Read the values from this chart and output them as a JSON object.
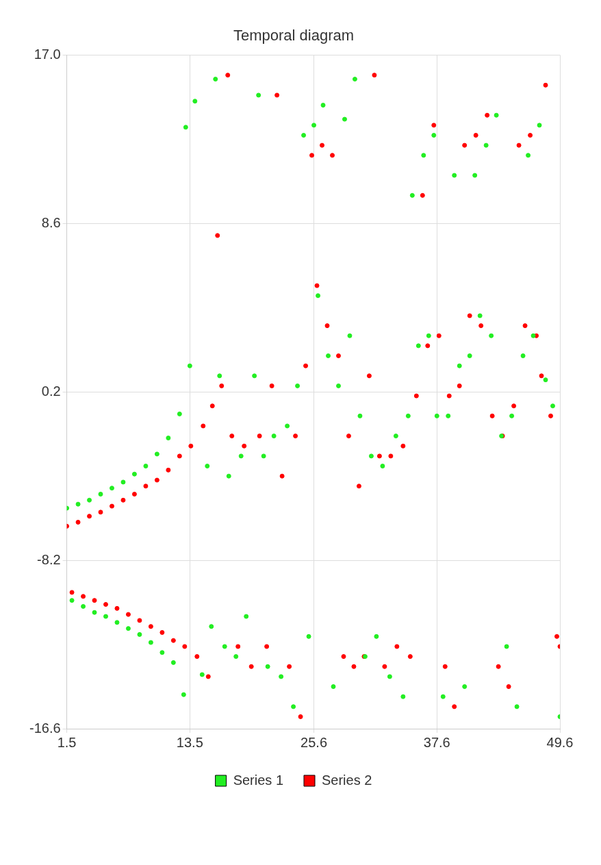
{
  "chart_data": {
    "type": "scatter",
    "title": "Temporal diagram",
    "xlim": [
      1.5,
      49.6
    ],
    "ylim": [
      -16.6,
      17.0
    ],
    "xticks": [
      1.5,
      13.5,
      25.6,
      37.6,
      49.6
    ],
    "yticks": [
      -16.6,
      -8.2,
      0.2,
      8.6,
      {
        "value": 17.0,
        "label": "17.0"
      }
    ],
    "grid": true,
    "legend": "bottom",
    "marker": "circle",
    "series": [
      {
        "name": "Series 1",
        "color": "#22ee22",
        "x": [
          1.5,
          2.0,
          2.6,
          3.1,
          3.7,
          4.2,
          4.8,
          5.3,
          5.9,
          6.4,
          7.0,
          7.5,
          8.1,
          8.6,
          9.2,
          9.7,
          10.3,
          10.8,
          11.4,
          11.9,
          12.5,
          12.9,
          13.1,
          13.5,
          14.0,
          14.7,
          15.2,
          15.6,
          16.0,
          16.4,
          16.9,
          17.3,
          18.0,
          18.5,
          19.0,
          19.8,
          20.2,
          20.7,
          21.1,
          21.7,
          22.4,
          23.0,
          23.6,
          24.0,
          24.6,
          25.1,
          25.6,
          26.0,
          26.5,
          27.0,
          27.5,
          28.0,
          28.6,
          29.1,
          29.6,
          30.1,
          30.6,
          31.2,
          31.7,
          32.3,
          33.0,
          33.6,
          34.3,
          34.8,
          35.2,
          35.8,
          36.3,
          36.8,
          37.3,
          37.6,
          38.2,
          38.7,
          39.3,
          39.8,
          40.3,
          40.8,
          41.3,
          41.8,
          42.4,
          42.9,
          43.4,
          43.9,
          44.4,
          44.9,
          45.4,
          46.0,
          46.5,
          47.0,
          47.6,
          48.2,
          48.9,
          49.6
        ],
        "values": [
          -5.6,
          -10.2,
          -5.4,
          -10.5,
          -5.2,
          -10.8,
          -4.9,
          -11.0,
          -4.6,
          -11.3,
          -4.3,
          -11.6,
          -3.9,
          -11.9,
          -3.5,
          -12.3,
          -2.9,
          -12.8,
          -2.1,
          -13.3,
          -0.9,
          -14.9,
          13.4,
          1.5,
          14.7,
          -13.9,
          -3.5,
          -11.5,
          15.8,
          1.0,
          -12.5,
          -4.0,
          -13.0,
          -3.0,
          -11.0,
          1.0,
          15.0,
          -3.0,
          -13.5,
          -2.0,
          -14.0,
          -1.5,
          -15.5,
          0.5,
          13.0,
          -12.0,
          13.5,
          5.0,
          14.5,
          2.0,
          -14.5,
          0.5,
          13.8,
          3.0,
          15.8,
          -1.0,
          -13.0,
          -3.0,
          -12.0,
          -3.5,
          -14.0,
          -2.0,
          -15.0,
          -1.0,
          10.0,
          2.5,
          12.0,
          3.0,
          13.0,
          -1.0,
          -15.0,
          -1.0,
          11.0,
          1.5,
          -14.5,
          2.0,
          11.0,
          4.0,
          12.5,
          3.0,
          14.0,
          -2.0,
          -12.5,
          -1.0,
          -15.5,
          2.0,
          12.0,
          3.0,
          13.5,
          0.8,
          -0.5,
          -16.0
        ]
      },
      {
        "name": "Series 2",
        "color": "#ff0000",
        "x": [
          1.5,
          2.0,
          2.6,
          3.1,
          3.7,
          4.2,
          4.8,
          5.3,
          5.9,
          6.4,
          7.0,
          7.5,
          8.1,
          8.6,
          9.2,
          9.7,
          10.3,
          10.8,
          11.4,
          11.9,
          12.5,
          13.0,
          13.6,
          14.2,
          14.8,
          15.3,
          15.7,
          16.2,
          16.6,
          17.2,
          17.6,
          18.2,
          18.8,
          19.5,
          20.3,
          21.0,
          21.5,
          22.0,
          22.5,
          23.2,
          23.8,
          24.3,
          24.8,
          25.4,
          25.9,
          26.4,
          26.9,
          27.4,
          28.0,
          28.5,
          29.0,
          29.5,
          30.0,
          30.5,
          31.0,
          31.5,
          32.0,
          32.5,
          33.1,
          33.7,
          34.3,
          35.0,
          35.6,
          36.2,
          36.7,
          37.3,
          37.8,
          38.4,
          38.8,
          39.3,
          39.8,
          40.3,
          40.8,
          41.4,
          41.9,
          42.5,
          43.0,
          43.6,
          44.0,
          44.6,
          45.1,
          45.6,
          46.2,
          46.7,
          47.3,
          47.8,
          48.2,
          48.7,
          49.3,
          49.6
        ],
        "values": [
          -6.5,
          -9.8,
          -6.3,
          -10.0,
          -6.0,
          -10.2,
          -5.8,
          -10.4,
          -5.5,
          -10.6,
          -5.2,
          -10.9,
          -4.9,
          -11.2,
          -4.5,
          -11.5,
          -4.2,
          -11.8,
          -3.7,
          -12.2,
          -3.0,
          -12.5,
          -2.5,
          -13.0,
          -1.5,
          -14.0,
          -0.5,
          8.0,
          0.5,
          16.0,
          -2.0,
          -12.5,
          -2.5,
          -13.5,
          -2.0,
          -12.5,
          0.5,
          15.0,
          -4.0,
          -13.5,
          -2.0,
          -16.0,
          1.5,
          12.0,
          5.5,
          12.5,
          3.5,
          12.0,
          2.0,
          -13.0,
          -2.0,
          -13.5,
          -4.5,
          -13.0,
          1.0,
          16.0,
          -3.0,
          -13.5,
          -3.0,
          -12.5,
          -2.5,
          -13.0,
          0.0,
          10.0,
          2.5,
          13.5,
          3.0,
          -13.5,
          0.0,
          -15.5,
          0.5,
          12.5,
          4.0,
          13.0,
          3.5,
          14.0,
          -1.0,
          -13.5,
          -2.0,
          -14.5,
          -0.5,
          12.5,
          3.5,
          13.0,
          3.0,
          1.0,
          15.5,
          -1.0,
          -12.0,
          -12.5
        ]
      }
    ]
  }
}
